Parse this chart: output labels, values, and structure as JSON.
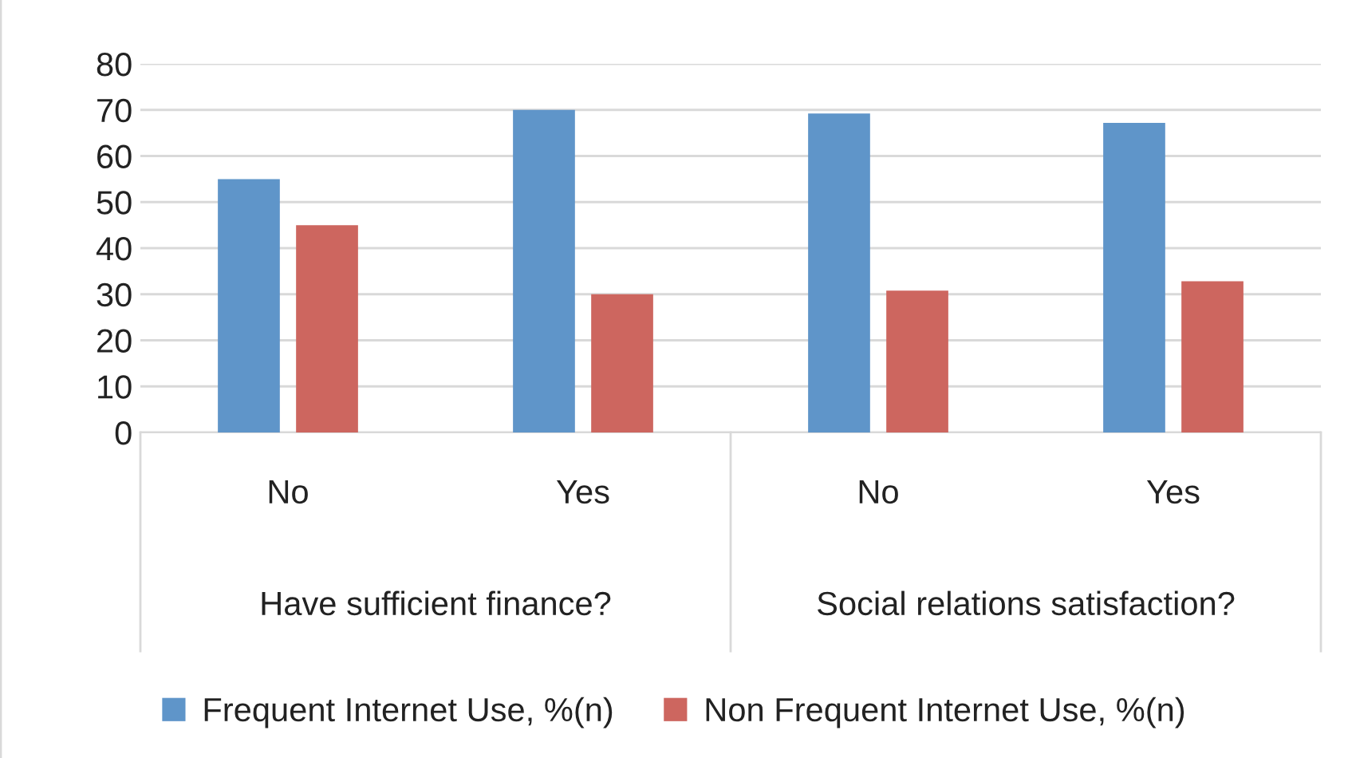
{
  "chart_data": {
    "type": "bar",
    "categories": [
      "No",
      "Yes",
      "No",
      "Yes"
    ],
    "series": [
      {
        "name": "Frequent Internet Use, %(n)",
        "color": "#5f95c9",
        "values": [
          55,
          70,
          69.2,
          67.2
        ]
      },
      {
        "name": "Non Frequent Internet Use, %(n)",
        "color": "#cd665f",
        "values": [
          45,
          30,
          30.8,
          32.8
        ]
      }
    ],
    "annotations": [
      "Have sufficient finance?",
      "Social relations satisfaction?"
    ],
    "ylim": [
      0,
      80
    ],
    "yticks": [
      0,
      10,
      20,
      30,
      40,
      50,
      60,
      70,
      80
    ],
    "grid": "y",
    "legend": "bottom"
  }
}
